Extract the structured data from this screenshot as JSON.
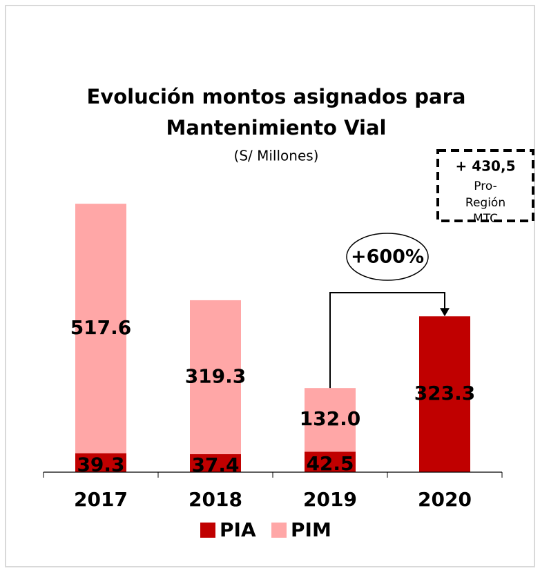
{
  "chart_data": {
    "type": "bar",
    "stacked": true,
    "title": [
      "Evolución montos asignados para",
      "Mantenimiento Vial"
    ],
    "subtitle": "(S/ Millones)",
    "categories": [
      "2017",
      "2018",
      "2019",
      "2020"
    ],
    "series": [
      {
        "name": "PIA",
        "color": "#c00000",
        "values": [
          39.3,
          37.4,
          42.5,
          323.3
        ]
      },
      {
        "name": "PIM",
        "color": "#ffa7a7",
        "values": [
          517.6,
          319.3,
          132.0,
          null
        ],
        "value_labels": [
          "517.6",
          "319.3",
          "132.0",
          null
        ]
      }
    ],
    "ylim": [
      0,
      560
    ],
    "growth_label": "+600%",
    "note_lines": [
      "+ 430,5",
      "Pro-",
      "Región",
      "MTC"
    ]
  }
}
